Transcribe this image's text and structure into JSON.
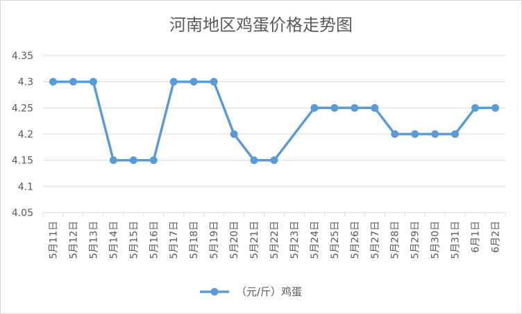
{
  "chart_data": {
    "type": "line",
    "title": "河南地区鸡蛋价格走势图",
    "categories": [
      "5月11日",
      "5月12日",
      "5月13日",
      "5月14日",
      "5月15日",
      "5月16日",
      "5月17日",
      "5月18日",
      "5月19日",
      "5月20日",
      "5月21日",
      "5月22日",
      "5月23日",
      "5月24日",
      "5月25日",
      "5月26日",
      "5月27日",
      "5月28日",
      "5月29日",
      "5月30日",
      "5月31日",
      "6月1日",
      "6月2日"
    ],
    "series": [
      {
        "name": "（元/斤）鸡蛋",
        "values": [
          4.3,
          4.3,
          4.3,
          4.15,
          4.15,
          4.15,
          4.3,
          4.3,
          4.3,
          4.2,
          4.15,
          4.15,
          null,
          4.25,
          4.25,
          4.25,
          4.25,
          4.2,
          4.2,
          4.2,
          4.2,
          4.25,
          4.25
        ],
        "color": "#5b9bd5"
      }
    ],
    "y_ticks": [
      "4.05",
      "4.1",
      "4.15",
      "4.2",
      "4.25",
      "4.3",
      "4.35"
    ],
    "ylim": [
      4.05,
      4.35
    ],
    "grid": true,
    "legend_position": "bottom"
  }
}
